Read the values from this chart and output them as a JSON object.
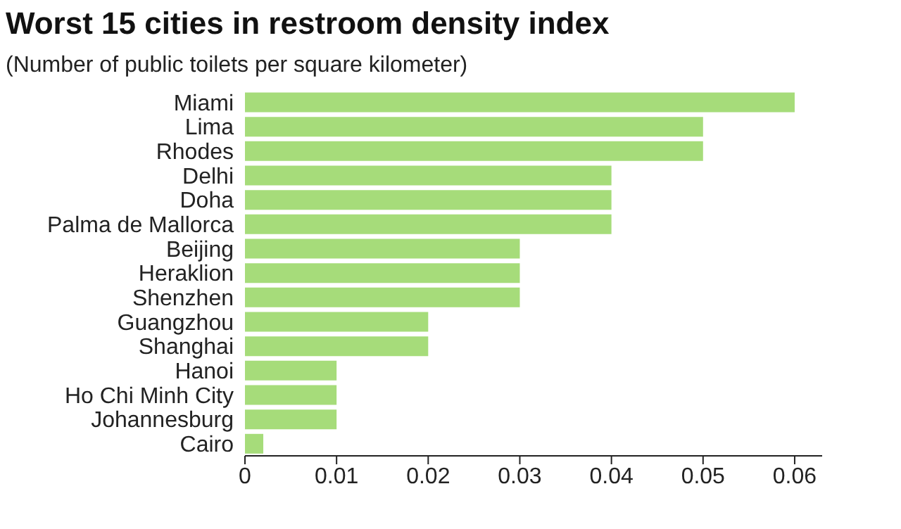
{
  "chart_data": {
    "type": "bar",
    "orientation": "horizontal",
    "title": "Worst 15 cities in restroom density index",
    "subtitle": "(Number of public toilets per square kilometer)",
    "categories": [
      "Miami",
      "Lima",
      "Rhodes",
      "Delhi",
      "Doha",
      "Palma de Mallorca",
      "Beijing",
      "Heraklion",
      "Shenzhen",
      "Guangzhou",
      "Shanghai",
      "Hanoi",
      "Ho Chi Minh City",
      "Johannesburg",
      "Cairo"
    ],
    "values": [
      0.06,
      0.05,
      0.05,
      0.04,
      0.04,
      0.04,
      0.03,
      0.03,
      0.03,
      0.02,
      0.02,
      0.01,
      0.01,
      0.01,
      0.002
    ],
    "color": "#a6dc7a",
    "xlim": [
      0,
      0.063
    ],
    "xticks": [
      0,
      0.01,
      0.02,
      0.03,
      0.04,
      0.05,
      0.06
    ],
    "grid": false,
    "legend": false
  }
}
